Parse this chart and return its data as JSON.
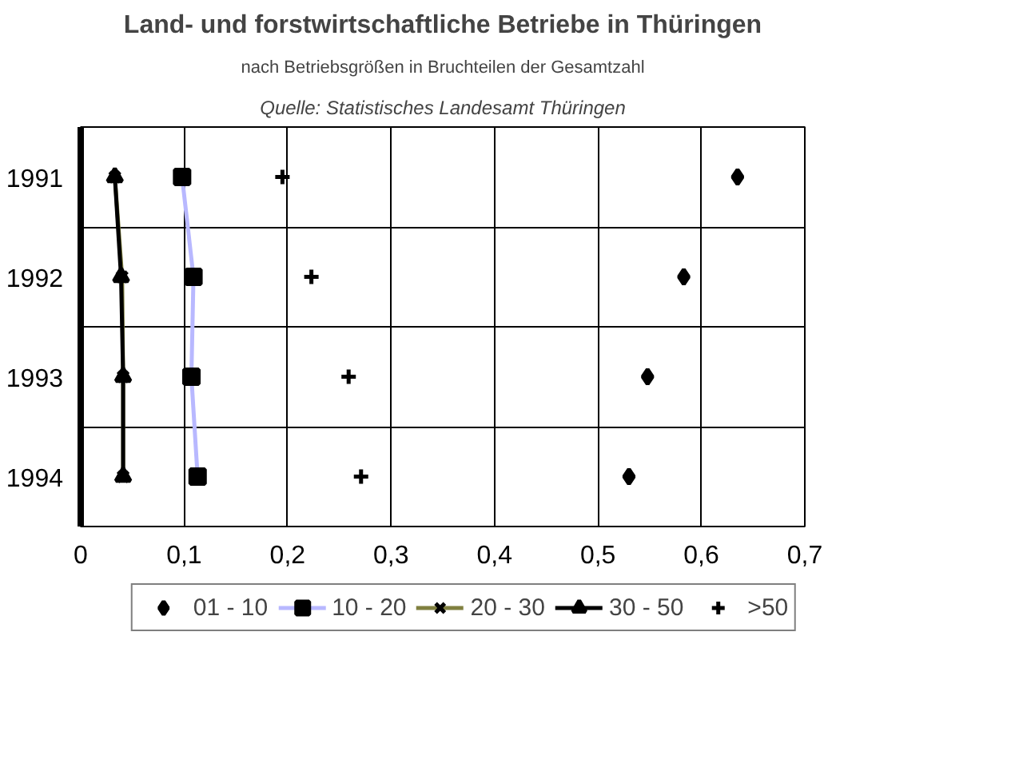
{
  "chart_data": {
    "type": "line",
    "orientation": "horizontal",
    "title": "Land- und forstwirtschaftliche Betriebe in Thüringen",
    "subtitle": "nach Betriebsgrößen in Bruchteilen der Gesamtzahl",
    "annotations": [
      "Quelle: Statistisches Landesamt Thüringen"
    ],
    "categories": [
      "1991",
      "1992",
      "1993",
      "1994"
    ],
    "xlim": [
      0,
      0.7
    ],
    "xticks": [
      {
        "value": 0,
        "label": "0"
      },
      {
        "value": 0.1,
        "label": "0,1"
      },
      {
        "value": 0.2,
        "label": "0,2"
      },
      {
        "value": 0.3,
        "label": "0,3"
      },
      {
        "value": 0.4,
        "label": "0,4"
      },
      {
        "value": 0.5,
        "label": "0,5"
      },
      {
        "value": 0.6,
        "label": "0,6"
      },
      {
        "value": 0.7,
        "label": "0,7"
      }
    ],
    "grid": true,
    "legend": "bottom",
    "series": [
      {
        "name": "01 - 10",
        "type": "scatter",
        "marker": "diamond",
        "color": "#000000",
        "values": [
          0.635,
          0.583,
          0.548,
          0.53
        ]
      },
      {
        "name": "10 - 20",
        "type": "line",
        "marker": "square",
        "color": "#b8b8ff",
        "values": [
          0.098,
          0.109,
          0.107,
          0.113
        ]
      },
      {
        "name": "20 - 30",
        "type": "line",
        "marker": "x",
        "color": "#808040",
        "values": [
          0.033,
          0.04,
          0.041,
          0.041
        ]
      },
      {
        "name": "30 - 50",
        "type": "line",
        "marker": "triangle",
        "color": "#000000",
        "values": [
          0.033,
          0.039,
          0.041,
          0.041
        ]
      },
      {
        "name": ">50",
        "type": "scatter",
        "marker": "cross",
        "color": "#000000",
        "values": [
          0.195,
          0.223,
          0.259,
          0.271
        ]
      }
    ]
  }
}
